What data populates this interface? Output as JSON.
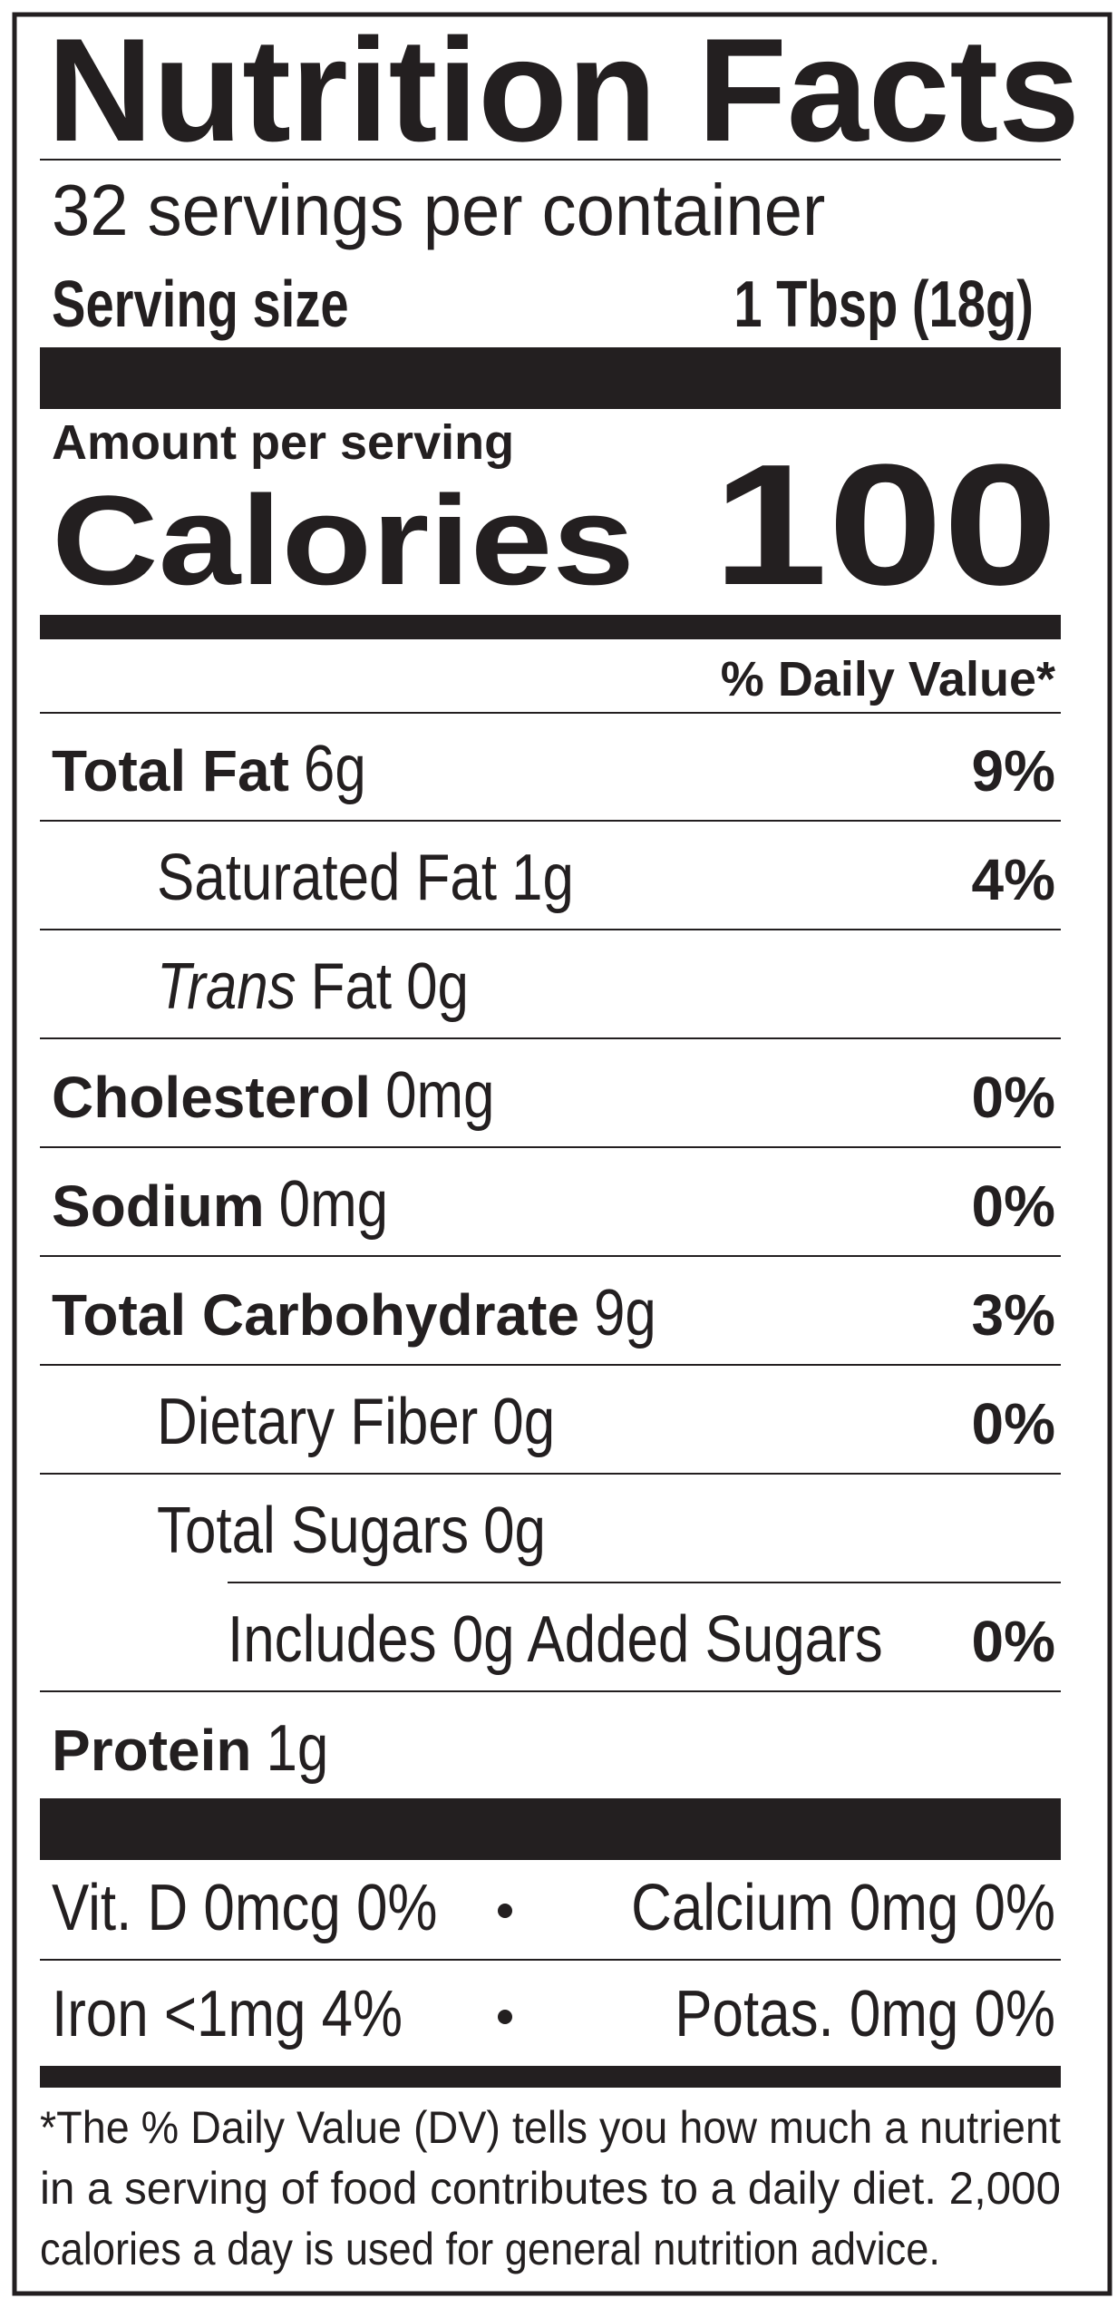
{
  "title": "Nutrition Facts",
  "servings_per_container": "32 servings per container",
  "serving_size": {
    "label": "Serving size",
    "value": "1 Tbsp (18g)"
  },
  "amount_per_serving": "Amount per serving",
  "calories": {
    "label": "Calories",
    "value": 100
  },
  "daily_value_header": "% Daily Value*",
  "nutrients": [
    {
      "name": "Total Fat",
      "amount": "6g",
      "dv": "9%"
    },
    {
      "name": "Saturated Fat",
      "amount": "1g",
      "dv": "4%"
    },
    {
      "name_italic": "Trans",
      "name": "Fat",
      "amount": "0g"
    },
    {
      "name": "Cholesterol",
      "amount": "0mg",
      "dv": "0%"
    },
    {
      "name": "Sodium",
      "amount": "0mg",
      "dv": "0%"
    },
    {
      "name": "Total Carbohydrate",
      "amount": "9g",
      "dv": "3%"
    },
    {
      "name": "Dietary Fiber",
      "amount": "0g",
      "dv": "0%"
    },
    {
      "name": "Total Sugars",
      "amount": "0g"
    },
    {
      "name": "Includes 0g Added Sugars",
      "dv": "0%"
    },
    {
      "name": "Protein",
      "amount": "1g"
    }
  ],
  "vitamins": [
    [
      "Vit. D 0mcg 0%",
      "Calcium 0mg 0%"
    ],
    [
      "Iron <1mg 4%",
      "Potas. 0mg 0%"
    ]
  ],
  "footnote": [
    "*The % Daily Value (DV) tells you how much a nutrient",
    "in a serving of food contributes to a daily diet. 2,000",
    "calories a day is used for general nutrition advice."
  ]
}
